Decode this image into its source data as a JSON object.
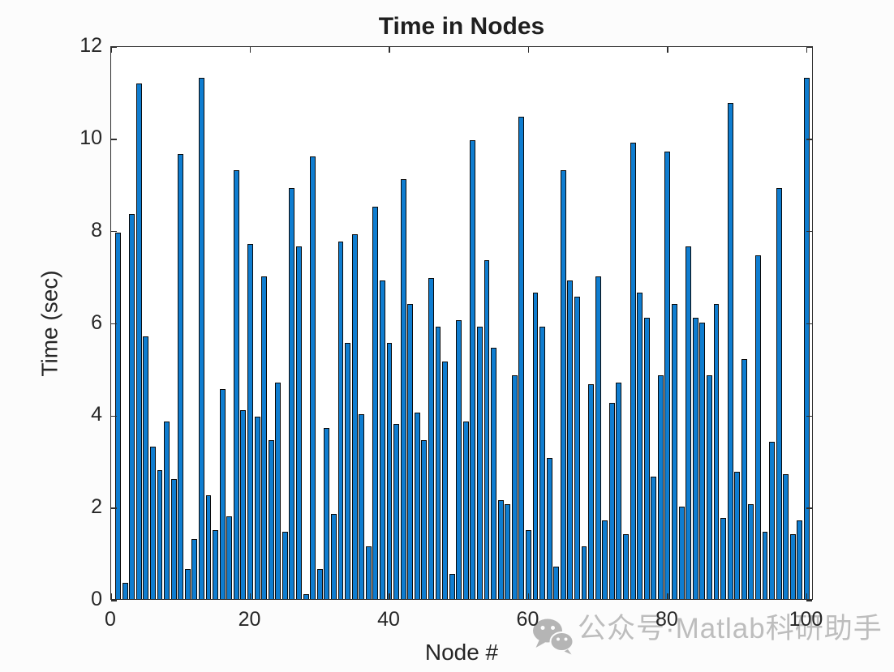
{
  "figure": {
    "title": "Time in Nodes",
    "xlabel": "Node #",
    "ylabel": "Time (sec)"
  },
  "chart_data": {
    "type": "bar",
    "title": "Time in Nodes",
    "xlabel": "Node #",
    "ylabel": "Time (sec)",
    "x": [
      1,
      2,
      3,
      4,
      5,
      6,
      7,
      8,
      9,
      10,
      11,
      12,
      13,
      14,
      15,
      16,
      17,
      18,
      19,
      20,
      21,
      22,
      23,
      24,
      25,
      26,
      27,
      28,
      29,
      30,
      31,
      32,
      33,
      34,
      35,
      36,
      37,
      38,
      39,
      40,
      41,
      42,
      43,
      44,
      45,
      46,
      47,
      48,
      49,
      50,
      51,
      52,
      53,
      54,
      55,
      56,
      57,
      58,
      59,
      60,
      61,
      62,
      63,
      64,
      65,
      66,
      67,
      68,
      69,
      70,
      71,
      72,
      73,
      74,
      75,
      76,
      77,
      78,
      79,
      80,
      81,
      82,
      83,
      84,
      85,
      86,
      87,
      88,
      89,
      90,
      91,
      92,
      93,
      94,
      95,
      96,
      97,
      98,
      99,
      100
    ],
    "values": [
      7.95,
      0.35,
      8.35,
      11.17,
      5.7,
      3.3,
      2.8,
      3.85,
      2.6,
      9.65,
      0.65,
      1.3,
      11.3,
      2.25,
      1.5,
      4.55,
      1.8,
      9.3,
      4.1,
      7.7,
      3.95,
      7.0,
      3.45,
      4.7,
      1.45,
      8.9,
      7.65,
      0.1,
      9.6,
      0.65,
      3.7,
      1.85,
      7.75,
      5.55,
      7.9,
      4.0,
      1.15,
      8.5,
      6.9,
      5.55,
      3.8,
      9.1,
      6.4,
      4.05,
      3.45,
      6.95,
      5.9,
      5.15,
      0.55,
      6.05,
      3.85,
      9.95,
      5.9,
      7.35,
      5.45,
      2.15,
      2.05,
      4.85,
      10.45,
      1.5,
      6.65,
      5.9,
      3.05,
      0.7,
      9.3,
      6.9,
      6.55,
      1.15,
      4.65,
      7.0,
      1.7,
      4.25,
      4.7,
      1.4,
      9.9,
      6.65,
      6.1,
      2.65,
      4.85,
      9.7,
      6.4,
      2.0,
      7.65,
      6.1,
      6.0,
      4.85,
      6.4,
      1.75,
      10.75,
      2.75,
      5.2,
      2.05,
      7.45,
      1.45,
      3.4,
      8.9,
      2.7,
      1.4,
      1.7,
      11.3
    ],
    "xlim": [
      0,
      101
    ],
    "ylim": [
      0,
      12
    ],
    "xticks": [
      0,
      20,
      40,
      60,
      80,
      100
    ],
    "xtick_labels": [
      "0",
      "20",
      "40",
      "60",
      "80",
      "100"
    ],
    "yticks": [
      0,
      2,
      4,
      6,
      8,
      10,
      12
    ],
    "ytick_labels": [
      "0",
      "2",
      "4",
      "6",
      "8",
      "10",
      "12"
    ],
    "bar_width_ratio": 0.8,
    "bar_color": "#0f7dd0",
    "bar_edge_color": "#0a0a0a",
    "axis_color": "#2e2e2e",
    "grid": false,
    "legend_position": "none"
  },
  "watermark": {
    "icon": "wechat-icon",
    "text": "公众号·Matlab科研助手",
    "color": "#bdbdbd"
  }
}
